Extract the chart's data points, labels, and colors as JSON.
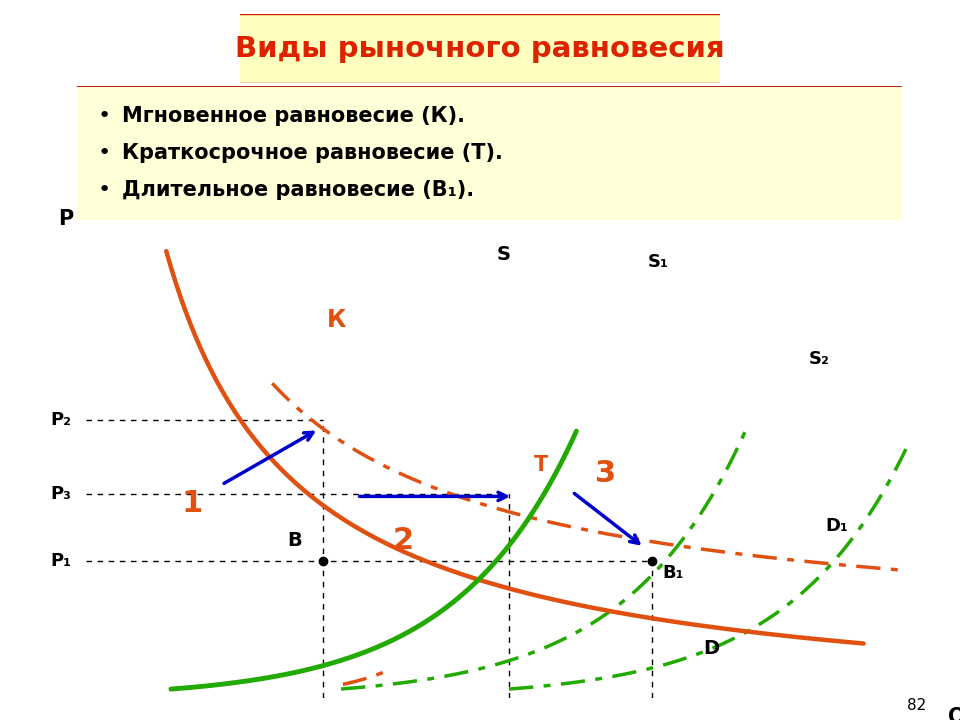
{
  "title": "Виды рыночного равновесия",
  "bullet1": "Мгновенное равновесие (К).",
  "bullet2": "Краткосрочное равновесие (Т).",
  "bullet3": "Длительное равновесие (В₁).",
  "title_color": "#DD2200",
  "title_box_bg": "#FFFFC0",
  "title_box_edge": "#CC2200",
  "bullet_box_bg": "#FFFFD8",
  "bullet_box_edge": "#AA1100",
  "orange_color": "#E05010",
  "green_color": "#22AA00",
  "blue_color": "#0000CC",
  "Q1": 0.28,
  "Q2": 0.5,
  "Q3": 0.67,
  "P1": 0.295,
  "P2": 0.6,
  "P3": 0.44
}
